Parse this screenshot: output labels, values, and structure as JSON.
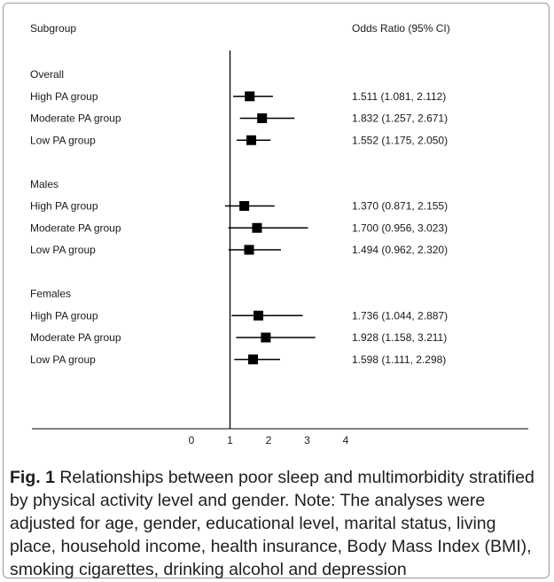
{
  "chart_data": {
    "type": "forest",
    "column_headers": {
      "subgroup": "Subgroup",
      "estimate": "Odds Ratio (95% CI)"
    },
    "groups": [
      {
        "label": "Overall",
        "rows": [
          {
            "label": "High PA group",
            "or": 1.511,
            "lo": 1.081,
            "hi": 2.112,
            "text": "1.511 (1.081, 2.112)"
          },
          {
            "label": "Moderate PA group",
            "or": 1.832,
            "lo": 1.257,
            "hi": 2.671,
            "text": "1.832 (1.257, 2.671)"
          },
          {
            "label": "Low PA group",
            "or": 1.552,
            "lo": 1.175,
            "hi": 2.05,
            "text": "1.552 (1.175, 2.050)"
          }
        ]
      },
      {
        "label": "Males",
        "rows": [
          {
            "label": "High PA group",
            "or": 1.37,
            "lo": 0.871,
            "hi": 2.155,
            "text": "1.370 (0.871, 2.155)"
          },
          {
            "label": "Moderate PA group",
            "or": 1.7,
            "lo": 0.956,
            "hi": 3.023,
            "text": "1.700 (0.956, 3.023)"
          },
          {
            "label": "Low PA group",
            "or": 1.494,
            "lo": 0.962,
            "hi": 2.32,
            "text": "1.494 (0.962, 2.320)"
          }
        ]
      },
      {
        "label": "Females",
        "rows": [
          {
            "label": "High PA group",
            "or": 1.736,
            "lo": 1.044,
            "hi": 2.887,
            "text": "1.736 (1.044, 2.887)"
          },
          {
            "label": "Moderate PA group",
            "or": 1.928,
            "lo": 1.158,
            "hi": 3.211,
            "text": "1.928 (1.158, 3.211)"
          },
          {
            "label": "Low PA group",
            "or": 1.598,
            "lo": 1.111,
            "hi": 2.298,
            "text": "1.598 (1.111, 2.298)"
          }
        ]
      }
    ],
    "x_ticks": [
      0,
      1,
      2,
      3,
      4
    ],
    "xlim": [
      0,
      4
    ],
    "reference_line": 1,
    "colors": {
      "marker": "#000000",
      "line": "#000000",
      "text": "#1a1a1a"
    }
  },
  "caption": {
    "label": "Fig. 1",
    "text": " Relationships between poor sleep and multimorbidity stratified by physical activity level and gender. Note: The analyses were adjusted for age, gender, educational level, marital status, living place, household income, health insurance, Body Mass Index (BMI), smoking cigarettes, drinking alcohol and depression"
  }
}
